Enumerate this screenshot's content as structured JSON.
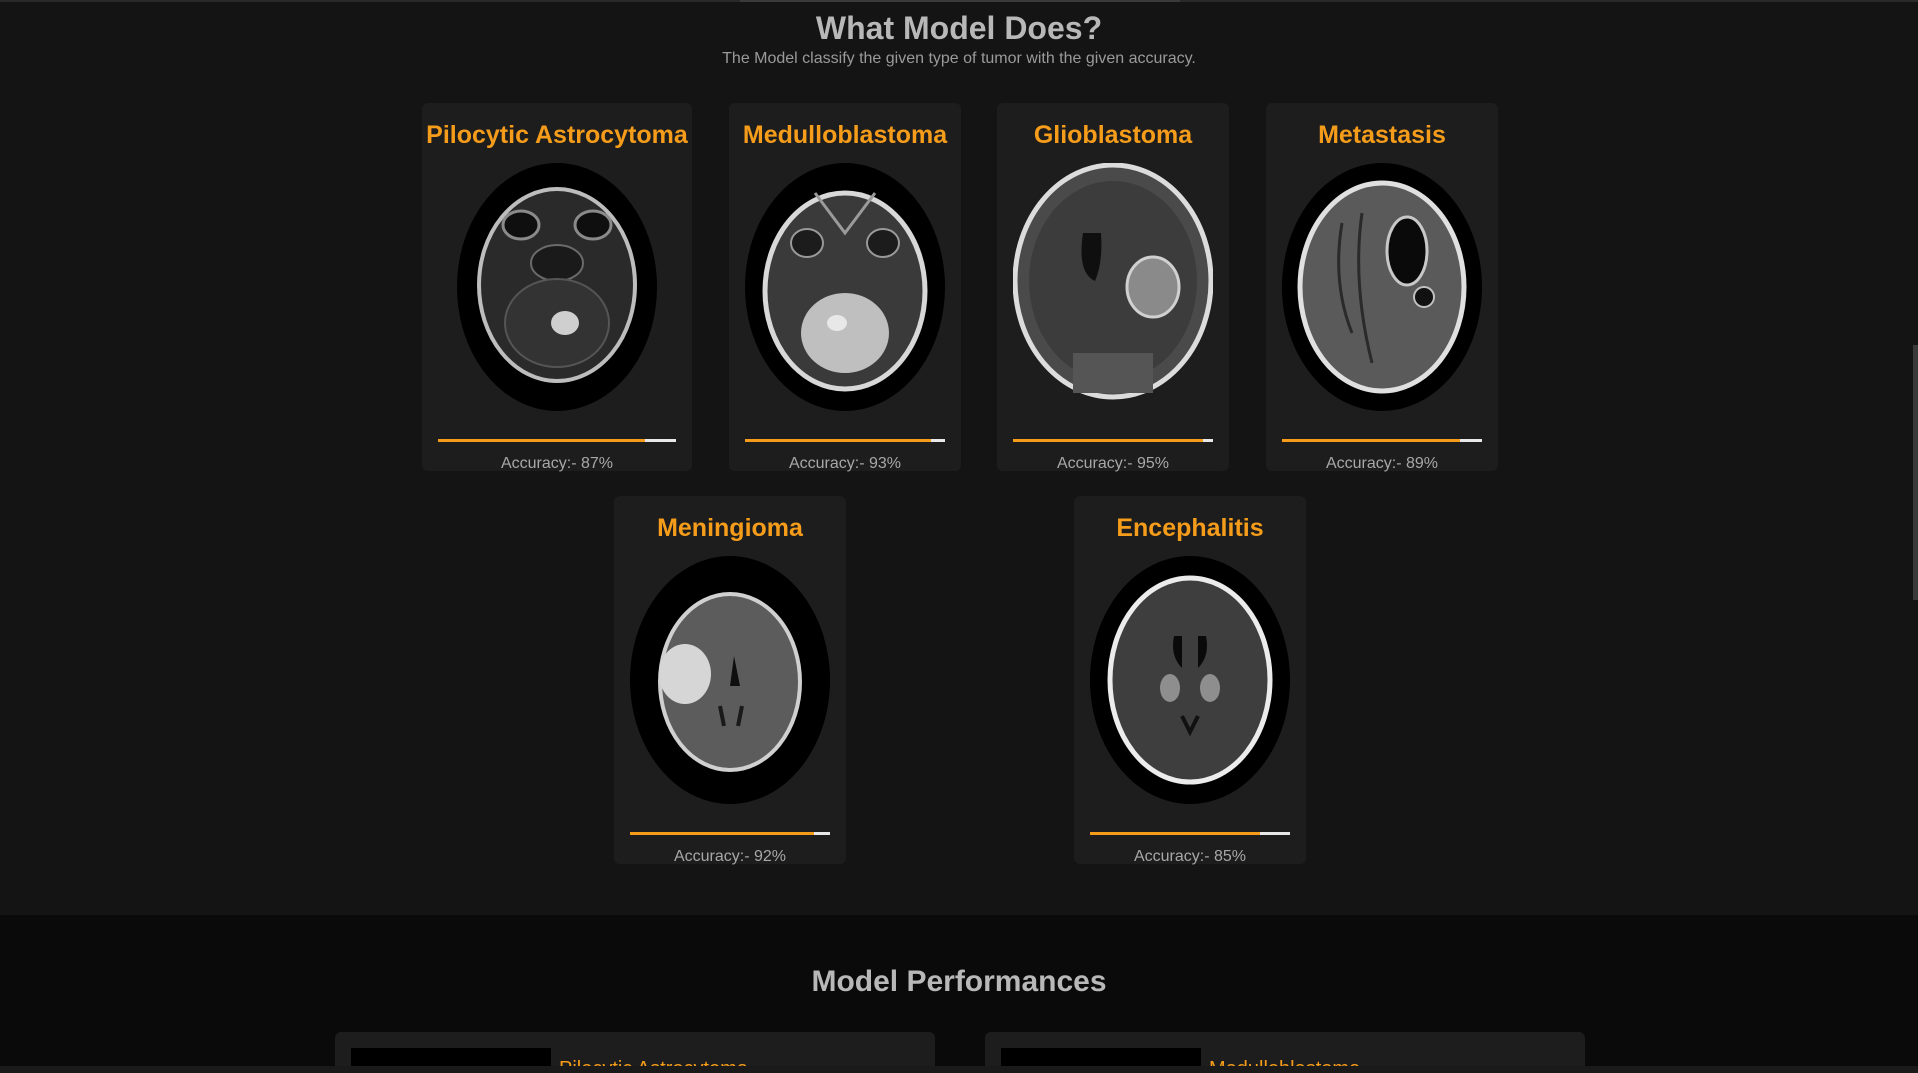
{
  "what": {
    "title": "What Model Does?",
    "subtitle": "The Model classify the given type of tumor with the given accuracy."
  },
  "cards": [
    {
      "name": "Pilocytic Astrocytoma",
      "accuracy_label": "Accuracy:- 87%",
      "accuracy": 0.87
    },
    {
      "name": "Medulloblastoma",
      "accuracy_label": "Accuracy:- 93%",
      "accuracy": 0.93
    },
    {
      "name": "Glioblastoma",
      "accuracy_label": "Accuracy:- 95%",
      "accuracy": 0.95
    },
    {
      "name": "Metastasis",
      "accuracy_label": "Accuracy:- 89%",
      "accuracy": 0.89
    },
    {
      "name": "Meningioma",
      "accuracy_label": "Accuracy:- 92%",
      "accuracy": 0.92
    },
    {
      "name": "Encephalitis",
      "accuracy_label": "Accuracy:- 85%",
      "accuracy": 0.85
    }
  ],
  "performance": {
    "title": "Model Performances",
    "items": [
      {
        "label": "Pilocytic Astrocytoma"
      },
      {
        "label": "Medulloblastoma"
      }
    ]
  },
  "colors": {
    "accent": "#f59c1a",
    "background": "#141414",
    "card": "#1d1d1d",
    "bar_track": "#e8e8e8"
  }
}
